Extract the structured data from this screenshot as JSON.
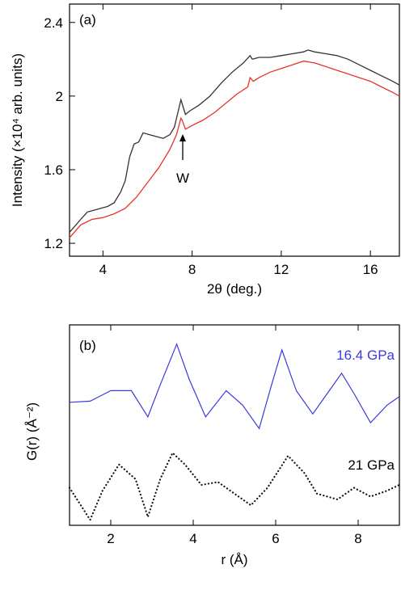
{
  "chart_data": [
    {
      "type": "line",
      "panel_label": "(a)",
      "xlabel": "2θ (deg.)",
      "ylabel": "Intensity (×10⁴ arb. units)",
      "xlim": [
        2.5,
        17.3
      ],
      "ylim": [
        1.13,
        2.5
      ],
      "xticks": [
        "4",
        "8",
        "12",
        "16"
      ],
      "yticks": [
        "1.2",
        "1.6",
        "2",
        "2.4"
      ],
      "annotation": "W",
      "series": [
        {
          "color": "#333333",
          "points": [
            [
              2.5,
              1.26
            ],
            [
              3.0,
              1.33
            ],
            [
              3.3,
              1.37
            ],
            [
              3.6,
              1.38
            ],
            [
              3.9,
              1.39
            ],
            [
              4.2,
              1.4
            ],
            [
              4.5,
              1.42
            ],
            [
              4.8,
              1.48
            ],
            [
              5.0,
              1.54
            ],
            [
              5.2,
              1.67
            ],
            [
              5.4,
              1.74
            ],
            [
              5.6,
              1.75
            ],
            [
              5.8,
              1.8
            ],
            [
              6.1,
              1.79
            ],
            [
              6.4,
              1.78
            ],
            [
              6.7,
              1.77
            ],
            [
              7.0,
              1.79
            ],
            [
              7.2,
              1.83
            ],
            [
              7.4,
              1.93
            ],
            [
              7.5,
              1.98
            ],
            [
              7.6,
              1.94
            ],
            [
              7.7,
              1.9
            ],
            [
              7.9,
              1.92
            ],
            [
              8.3,
              1.95
            ],
            [
              8.8,
              2.0
            ],
            [
              9.3,
              2.07
            ],
            [
              9.8,
              2.13
            ],
            [
              10.3,
              2.18
            ],
            [
              10.6,
              2.22
            ],
            [
              10.7,
              2.2
            ],
            [
              11.0,
              2.21
            ],
            [
              11.5,
              2.21
            ],
            [
              12.0,
              2.22
            ],
            [
              12.5,
              2.23
            ],
            [
              13.0,
              2.24
            ],
            [
              13.2,
              2.25
            ],
            [
              13.5,
              2.24
            ],
            [
              14.0,
              2.23
            ],
            [
              14.5,
              2.22
            ],
            [
              15.0,
              2.2
            ],
            [
              15.5,
              2.17
            ],
            [
              16.0,
              2.14
            ],
            [
              16.5,
              2.11
            ],
            [
              17.0,
              2.08
            ],
            [
              17.3,
              2.06
            ]
          ]
        },
        {
          "color": "#e8322a",
          "points": [
            [
              2.5,
              1.23
            ],
            [
              3.0,
              1.3
            ],
            [
              3.5,
              1.33
            ],
            [
              4.0,
              1.34
            ],
            [
              4.5,
              1.36
            ],
            [
              5.0,
              1.39
            ],
            [
              5.5,
              1.45
            ],
            [
              6.0,
              1.53
            ],
            [
              6.5,
              1.61
            ],
            [
              7.0,
              1.71
            ],
            [
              7.3,
              1.79
            ],
            [
              7.5,
              1.88
            ],
            [
              7.55,
              1.87
            ],
            [
              7.7,
              1.82
            ],
            [
              8.0,
              1.84
            ],
            [
              8.5,
              1.87
            ],
            [
              9.0,
              1.91
            ],
            [
              9.5,
              1.96
            ],
            [
              10.0,
              2.01
            ],
            [
              10.5,
              2.05
            ],
            [
              10.6,
              2.1
            ],
            [
              10.75,
              2.08
            ],
            [
              11.0,
              2.1
            ],
            [
              11.5,
              2.13
            ],
            [
              12.0,
              2.15
            ],
            [
              12.5,
              2.17
            ],
            [
              13.0,
              2.19
            ],
            [
              13.5,
              2.18
            ],
            [
              14.0,
              2.16
            ],
            [
              14.5,
              2.14
            ],
            [
              15.0,
              2.12
            ],
            [
              15.5,
              2.1
            ],
            [
              16.0,
              2.08
            ],
            [
              16.5,
              2.05
            ],
            [
              17.0,
              2.02
            ],
            [
              17.3,
              2.0
            ]
          ]
        }
      ]
    },
    {
      "type": "line",
      "panel_label": "(b)",
      "xlabel": "r (Å)",
      "ylabel": "G(r) (Å⁻²)",
      "xlim": [
        1.0,
        9.0
      ],
      "xticks": [
        "2",
        "4",
        "6",
        "8"
      ],
      "series": [
        {
          "name": "16.4 GPa",
          "color": "#3a3ae0",
          "style": "solid",
          "points": [
            [
              1.0,
              0.1
            ],
            [
              1.5,
              0.12
            ],
            [
              2.0,
              0.3
            ],
            [
              2.5,
              0.3
            ],
            [
              2.9,
              -0.15
            ],
            [
              3.2,
              0.4
            ],
            [
              3.6,
              1.1
            ],
            [
              3.9,
              0.5
            ],
            [
              4.3,
              -0.15
            ],
            [
              4.8,
              0.3
            ],
            [
              5.2,
              0.05
            ],
            [
              5.6,
              -0.35
            ],
            [
              5.9,
              0.4
            ],
            [
              6.15,
              1.0
            ],
            [
              6.5,
              0.3
            ],
            [
              6.9,
              -0.1
            ],
            [
              7.3,
              0.3
            ],
            [
              7.6,
              0.6
            ],
            [
              7.9,
              0.25
            ],
            [
              8.3,
              -0.25
            ],
            [
              8.7,
              0.05
            ],
            [
              9.0,
              0.2
            ]
          ]
        },
        {
          "name": "21 GPa",
          "color": "#111111",
          "style": "dotted",
          "points": [
            [
              1.0,
              -0.05
            ],
            [
              1.5,
              -0.6
            ],
            [
              1.8,
              -0.1
            ],
            [
              2.2,
              0.35
            ],
            [
              2.6,
              0.1
            ],
            [
              2.9,
              -0.55
            ],
            [
              3.2,
              0.1
            ],
            [
              3.5,
              0.55
            ],
            [
              3.8,
              0.35
            ],
            [
              4.2,
              0.0
            ],
            [
              4.6,
              0.05
            ],
            [
              5.0,
              -0.15
            ],
            [
              5.4,
              -0.35
            ],
            [
              5.8,
              -0.05
            ],
            [
              6.3,
              0.5
            ],
            [
              6.7,
              0.2
            ],
            [
              7.0,
              -0.15
            ],
            [
              7.5,
              -0.25
            ],
            [
              7.9,
              -0.05
            ],
            [
              8.3,
              -0.2
            ],
            [
              8.7,
              -0.1
            ],
            [
              9.0,
              0.0
            ]
          ]
        }
      ]
    }
  ]
}
